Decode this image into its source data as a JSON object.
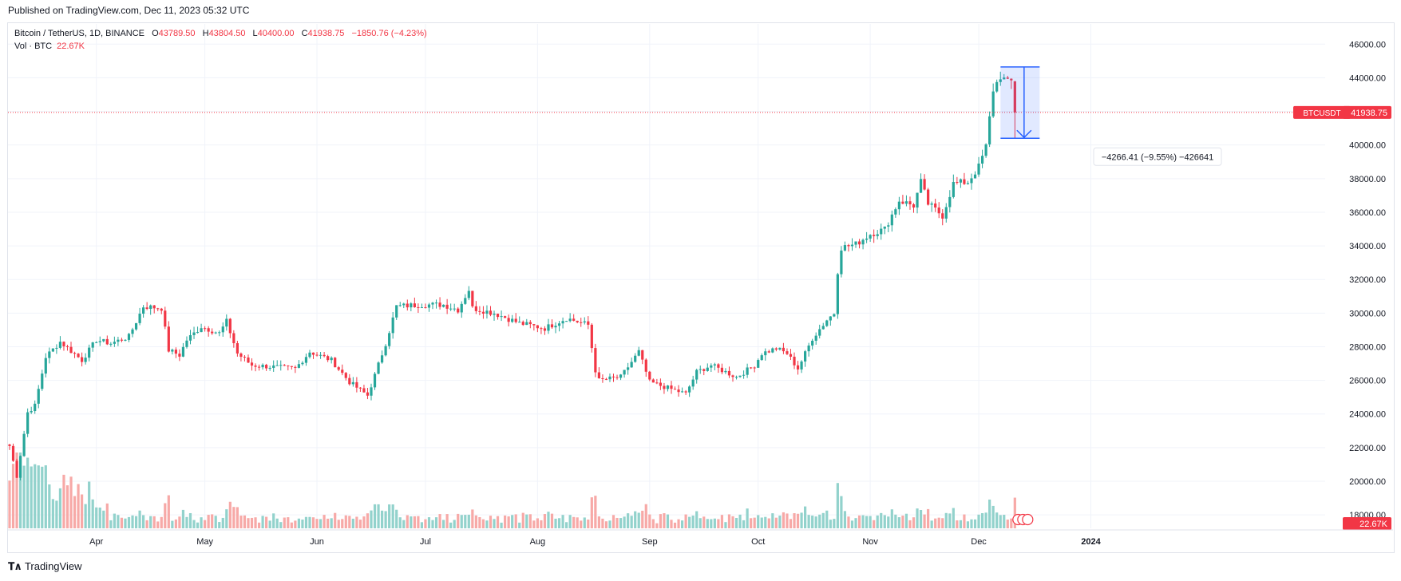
{
  "header": {
    "published": "Published on TradingView.com, Dec 11, 2023 05:32 UTC"
  },
  "legend": {
    "symbol": "Bitcoin / TetherUS, 1D, BINANCE",
    "open_label": "O",
    "open": "43789.50",
    "high_label": "H",
    "high": "43804.50",
    "low_label": "L",
    "low": "40400.00",
    "close_label": "C",
    "close": "41938.75",
    "change": "−1850.76 (−4.23%)",
    "volume_label": "Vol · BTC",
    "volume": "22.67K"
  },
  "footer": {
    "brand": "TradingView"
  },
  "chart_data": {
    "type": "candlestick",
    "symbol": "BTCUSDT",
    "interval": "1D",
    "exchange": "BINANCE",
    "y_ticks": [
      18000,
      20000,
      22000,
      24000,
      26000,
      28000,
      30000,
      32000,
      34000,
      36000,
      38000,
      40000,
      42000,
      44000,
      46000
    ],
    "y_tick_labels": [
      "18000.00",
      "20000.00",
      "22000.00",
      "24000.00",
      "26000.00",
      "28000.00",
      "30000.00",
      "32000.00",
      "34000.00",
      "36000.00",
      "38000.00",
      "40000.00",
      "42000.00",
      "44000.00",
      "46000.00"
    ],
    "ylim": [
      17200,
      47200
    ],
    "x_ticks": [
      "Apr",
      "May",
      "Jun",
      "Jul",
      "Aug",
      "Sep",
      "Oct",
      "Nov",
      "Dec",
      "2024"
    ],
    "last_price": 41938.75,
    "last_price_label": "41938.75",
    "last_price_tag": "BTCUSDT",
    "volume_last_label": "22.67K",
    "grid": true,
    "colors": {
      "up": "#26a69a",
      "down": "#f23645",
      "vol_up": "#92d2cc",
      "vol_down": "#f7a9a7",
      "measure": "#2962ff"
    },
    "measurement": {
      "from_price": 44640,
      "to_price": 40400,
      "label": "−4266.41 (−9.55%) −426641"
    },
    "keypoints": [
      [
        "2023-03-08",
        22100
      ],
      [
        "2023-03-10",
        20300
      ],
      [
        "2023-03-13",
        24100
      ],
      [
        "2023-03-15",
        24500
      ],
      [
        "2023-03-18",
        27400
      ],
      [
        "2023-03-22",
        28300
      ],
      [
        "2023-03-28",
        27200
      ],
      [
        "2023-04-01",
        28400
      ],
      [
        "2023-04-05",
        28200
      ],
      [
        "2023-04-10",
        28600
      ],
      [
        "2023-04-14",
        30400
      ],
      [
        "2023-04-19",
        30300
      ],
      [
        "2023-04-21",
        27800
      ],
      [
        "2023-04-24",
        27500
      ],
      [
        "2023-04-26",
        28400
      ],
      [
        "2023-04-30",
        29200
      ],
      [
        "2023-05-05",
        28800
      ],
      [
        "2023-05-07",
        29500
      ],
      [
        "2023-05-10",
        27600
      ],
      [
        "2023-05-14",
        26900
      ],
      [
        "2023-05-20",
        26800
      ],
      [
        "2023-05-26",
        26700
      ],
      [
        "2023-05-30",
        27700
      ],
      [
        "2023-06-05",
        27200
      ],
      [
        "2023-06-10",
        25900
      ],
      [
        "2023-06-15",
        25100
      ],
      [
        "2023-06-17",
        26300
      ],
      [
        "2023-06-20",
        28200
      ],
      [
        "2023-06-23",
        30400
      ],
      [
        "2023-06-30",
        30500
      ],
      [
        "2023-07-06",
        30500
      ],
      [
        "2023-07-10",
        30200
      ],
      [
        "2023-07-13",
        31400
      ],
      [
        "2023-07-14",
        30300
      ],
      [
        "2023-07-20",
        30000
      ],
      [
        "2023-07-27",
        29400
      ],
      [
        "2023-08-03",
        29100
      ],
      [
        "2023-08-09",
        29700
      ],
      [
        "2023-08-15",
        29300
      ],
      [
        "2023-08-17",
        26600
      ],
      [
        "2023-08-18",
        26000
      ],
      [
        "2023-08-24",
        26200
      ],
      [
        "2023-08-29",
        27700
      ],
      [
        "2023-09-01",
        25900
      ],
      [
        "2023-09-11",
        25200
      ],
      [
        "2023-09-14",
        26500
      ],
      [
        "2023-09-18",
        26900
      ],
      [
        "2023-09-25",
        26200
      ],
      [
        "2023-09-30",
        26900
      ],
      [
        "2023-10-02",
        27600
      ],
      [
        "2023-10-06",
        27900
      ],
      [
        "2023-10-09",
        27600
      ],
      [
        "2023-10-12",
        26700
      ],
      [
        "2023-10-16",
        28500
      ],
      [
        "2023-10-20",
        29600
      ],
      [
        "2023-10-22",
        30000
      ],
      [
        "2023-10-23",
        32500
      ],
      [
        "2023-10-24",
        33900
      ],
      [
        "2023-10-28",
        34100
      ],
      [
        "2023-11-01",
        34700
      ],
      [
        "2023-11-05",
        35000
      ],
      [
        "2023-11-09",
        36700
      ],
      [
        "2023-11-13",
        36400
      ],
      [
        "2023-11-15",
        37800
      ],
      [
        "2023-11-17",
        36500
      ],
      [
        "2023-11-21",
        35800
      ],
      [
        "2023-11-24",
        37700
      ],
      [
        "2023-11-28",
        37800
      ],
      [
        "2023-12-01",
        38700
      ],
      [
        "2023-12-03",
        39900
      ],
      [
        "2023-12-05",
        43300
      ],
      [
        "2023-12-07",
        44100
      ],
      [
        "2023-12-09",
        43700
      ],
      [
        "2023-12-10",
        43790
      ],
      [
        "2023-12-11",
        41939
      ]
    ]
  }
}
